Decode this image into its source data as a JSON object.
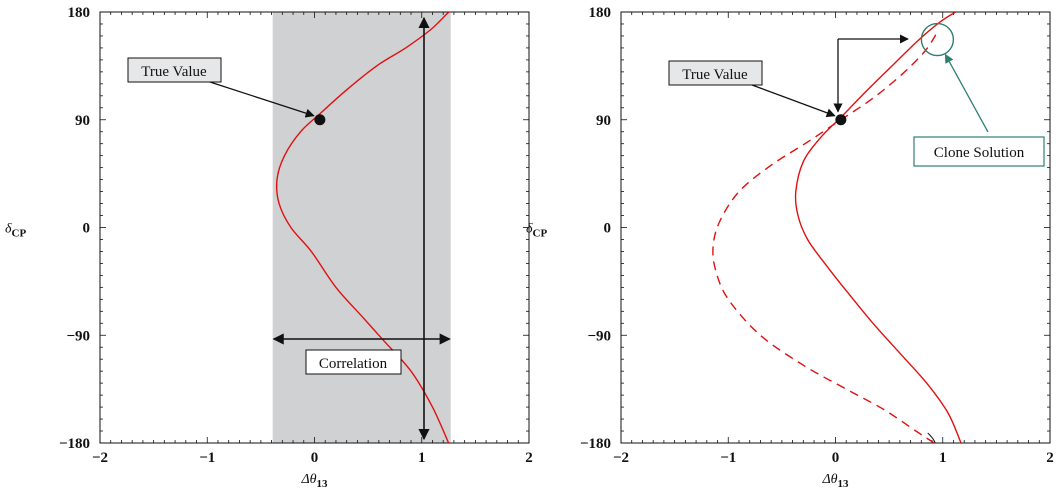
{
  "chart_data": [
    {
      "type": "line",
      "xlabel": "Δθ",
      "xlabel_sub": "13",
      "ylabel": "δ",
      "ylabel_sub": "CP",
      "xlim": [
        -2,
        2
      ],
      "ylim": [
        -180,
        180
      ],
      "xticks": [
        "−2",
        "−1",
        "0",
        "1",
        "2"
      ],
      "yticks": [
        "−180",
        "−90",
        "0",
        "90",
        "180"
      ],
      "shaded_band": [
        -0.39,
        1.27
      ],
      "series": [
        {
          "style": "solid",
          "color": "#e01010",
          "x": [
            1.25,
            1.1,
            0.9,
            0.65,
            0.45,
            0.2,
            -0.03,
            -0.22,
            -0.33,
            -0.35,
            -0.28,
            -0.13,
            0.05,
            0.3,
            0.58,
            0.85,
            1.08,
            1.23,
            1.28
          ],
          "y": [
            -180,
            -150,
            -120,
            -95,
            -75,
            -50,
            -20,
            0,
            20,
            40,
            60,
            80,
            95,
            115,
            135,
            150,
            165,
            178,
            182
          ]
        }
      ],
      "true_value": {
        "x": 0.05,
        "y": 90
      },
      "annotations": {
        "true_value_label": "True Value",
        "correlation_label": "Correlation"
      }
    },
    {
      "type": "line",
      "xlabel": "Δθ",
      "xlabel_sub": "13",
      "ylabel": "δ",
      "ylabel_sub": "CP",
      "xlim": [
        -2,
        2
      ],
      "ylim": [
        -180,
        180
      ],
      "xticks": [
        "−2",
        "−1",
        "0",
        "1",
        "2"
      ],
      "yticks": [
        "−180",
        "−90",
        "0",
        "90",
        "180"
      ],
      "series": [
        {
          "style": "solid",
          "color": "#e01010",
          "x": [
            1.17,
            1.05,
            0.85,
            0.6,
            0.35,
            0.12,
            -0.1,
            -0.26,
            -0.35,
            -0.37,
            -0.3,
            -0.14,
            0.05,
            0.3,
            0.55,
            0.78,
            0.98,
            1.12
          ],
          "y": [
            -180,
            -155,
            -130,
            -105,
            -80,
            -55,
            -30,
            -10,
            10,
            30,
            55,
            75,
            92,
            115,
            137,
            157,
            172,
            180
          ]
        },
        {
          "style": "dashed",
          "color": "#e01010",
          "x": [
            0.92,
            0.75,
            0.45,
            0.1,
            -0.3,
            -0.7,
            -1.0,
            -1.12,
            -1.14,
            -1.08,
            -0.9,
            -0.6,
            -0.25,
            0.05,
            0.35,
            0.62,
            0.84,
            0.96
          ],
          "y": [
            -180,
            -170,
            -152,
            -135,
            -115,
            -90,
            -60,
            -35,
            -15,
            5,
            30,
            52,
            72,
            90,
            108,
            128,
            148,
            165
          ]
        }
      ],
      "true_value": {
        "x": 0.05,
        "y": 90
      },
      "clone_solution": {
        "x": 0.95,
        "y": 157
      },
      "annotations": {
        "true_value_label": "True Value",
        "clone_label": "Clone Solution"
      }
    }
  ]
}
